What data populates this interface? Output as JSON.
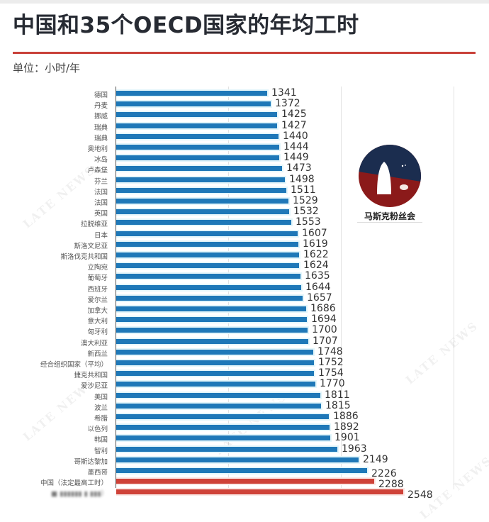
{
  "title": "中国和35个OECD国家的年均工时",
  "unit_label": "单位：小时/年",
  "watermark_text": "LATE NEWS",
  "logo": {
    "caption": "马斯克粉丝会",
    "colors": {
      "top": "#1b2d4f",
      "bottom": "#8b1a1a"
    }
  },
  "colors": {
    "bar_default": "#1e78b8",
    "bar_highlight": "#cf4238",
    "title_rule": "#c9413a"
  },
  "chart_data": {
    "type": "bar",
    "orientation": "horizontal",
    "title": "中国和35个OECD国家的年均工时",
    "subtitle": "单位：小时/年",
    "xlabel": "",
    "ylabel": "",
    "xlim": [
      0,
      3400
    ],
    "grid": {
      "vertical": true,
      "interval": 1000
    },
    "legend": null,
    "categories": [
      "德国",
      "丹麦",
      "挪威",
      "瑞典",
      "瑞典",
      "奥地利",
      "冰岛",
      "卢森堡",
      "芬兰",
      "法国",
      "法国",
      "英国",
      "拉脱维亚",
      "日本",
      "斯洛文尼亚",
      "斯洛伐克共和国",
      "立陶宛",
      "葡萄牙",
      "西班牙",
      "爱尔兰",
      "加拿大",
      "意大利",
      "匈牙利",
      "澳大利亚",
      "新西兰",
      "经合组织国家（平均）",
      "捷克共和国",
      "爱沙尼亚",
      "美国",
      "波兰",
      "希腊",
      "以色列",
      "韩国",
      "智利",
      "哥斯达黎加",
      "墨西哥",
      "中国（法定最高工时）",
      "（标签被遮挡）"
    ],
    "values": [
      1341,
      1372,
      1425,
      1427,
      1440,
      1444,
      1449,
      1473,
      1498,
      1511,
      1529,
      1532,
      1553,
      1607,
      1619,
      1622,
      1624,
      1635,
      1644,
      1657,
      1686,
      1694,
      1700,
      1707,
      1748,
      1752,
      1754,
      1770,
      1811,
      1815,
      1886,
      1892,
      1901,
      1963,
      2149,
      2226,
      2288,
      2548
    ],
    "highlight_indices": [
      36,
      37
    ],
    "obscured_label_indices": [
      37
    ]
  },
  "rows": [
    {
      "label": "德国",
      "value": "1341"
    },
    {
      "label": "丹麦",
      "value": "1372"
    },
    {
      "label": "挪威",
      "value": "1425"
    },
    {
      "label": "瑞典",
      "value": "1427"
    },
    {
      "label": "瑞典",
      "value": "1440"
    },
    {
      "label": "奥地利",
      "value": "1444"
    },
    {
      "label": "冰岛",
      "value": "1449"
    },
    {
      "label": "卢森堡",
      "value": "1473"
    },
    {
      "label": "芬兰",
      "value": "1498"
    },
    {
      "label": "法国",
      "value": "1511"
    },
    {
      "label": "法国",
      "value": "1529"
    },
    {
      "label": "英国",
      "value": "1532"
    },
    {
      "label": "拉脱维亚",
      "value": "1553"
    },
    {
      "label": "日本",
      "value": "1607"
    },
    {
      "label": "斯洛文尼亚",
      "value": "1619"
    },
    {
      "label": "斯洛伐克共和国",
      "value": "1622"
    },
    {
      "label": "立陶宛",
      "value": "1624"
    },
    {
      "label": "葡萄牙",
      "value": "1635"
    },
    {
      "label": "西班牙",
      "value": "1644"
    },
    {
      "label": "爱尔兰",
      "value": "1657"
    },
    {
      "label": "加拿大",
      "value": "1686"
    },
    {
      "label": "意大利",
      "value": "1694"
    },
    {
      "label": "匈牙利",
      "value": "1700"
    },
    {
      "label": "澳大利亚",
      "value": "1707"
    },
    {
      "label": "新西兰",
      "value": "1748"
    },
    {
      "label": "经合组织国家（平均）",
      "value": "1752"
    },
    {
      "label": "捷克共和国",
      "value": "1754"
    },
    {
      "label": "爱沙尼亚",
      "value": "1770"
    },
    {
      "label": "美国",
      "value": "1811"
    },
    {
      "label": "波兰",
      "value": "1815"
    },
    {
      "label": "希腊",
      "value": "1886"
    },
    {
      "label": "以色列",
      "value": "1892"
    },
    {
      "label": "韩国",
      "value": "1901"
    },
    {
      "label": "智利",
      "value": "1963"
    },
    {
      "label": "哥斯达黎加",
      "value": "2149"
    },
    {
      "label": "墨西哥",
      "value": "2226"
    },
    {
      "label": "中国（法定最高工时）",
      "value": "2288"
    },
    {
      "label": "■ ▮▮▮▮▮▮ ▮ ▮▮▮）",
      "value": "2548"
    }
  ]
}
